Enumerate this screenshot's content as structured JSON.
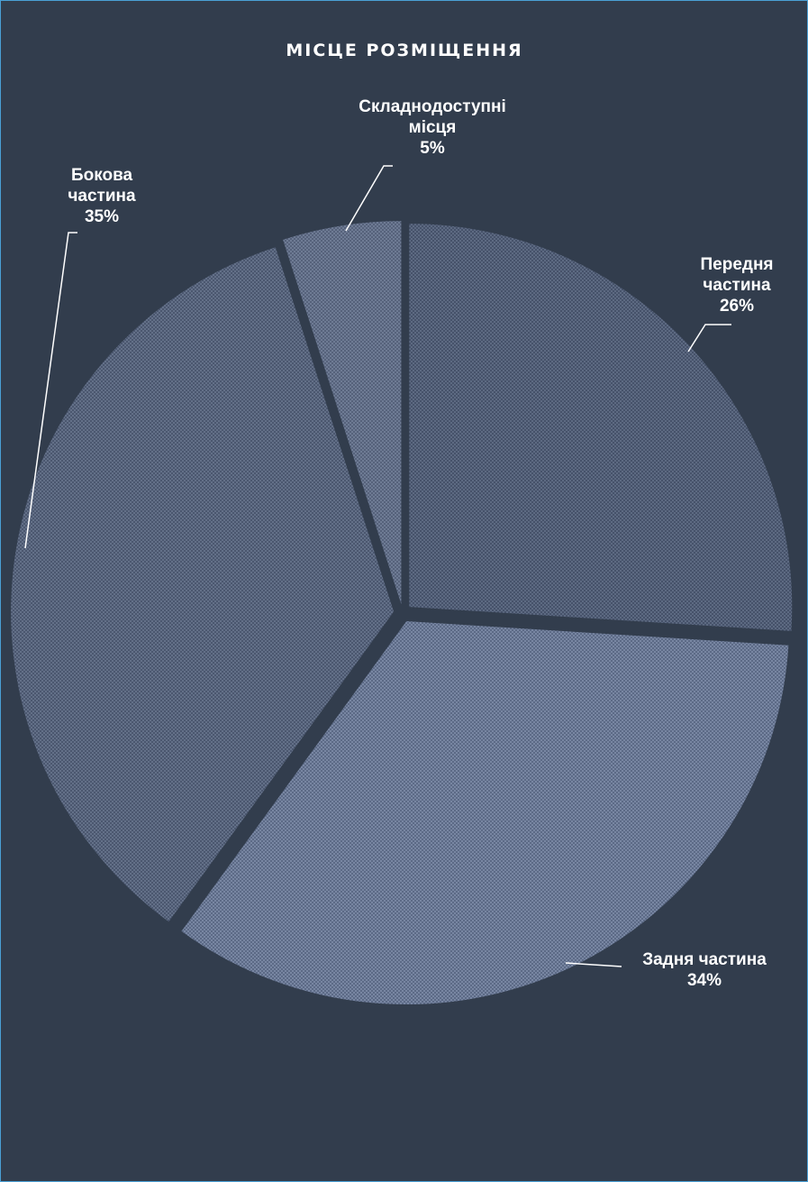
{
  "chart_data": {
    "type": "pie",
    "title": "МІСЦЕ РОЗМІЩЕННЯ",
    "slices": [
      {
        "label_lines": [
          "Передня",
          "частина"
        ],
        "value": 26,
        "value_label": "26%"
      },
      {
        "label_lines": [
          "Задня частина"
        ],
        "value": 34,
        "value_label": "34%"
      },
      {
        "label_lines": [
          "Бокова",
          "частина"
        ],
        "value": 35,
        "value_label": "35%"
      },
      {
        "label_lines": [
          "Складнодоступні",
          "місця"
        ],
        "value": 5,
        "value_label": "5%"
      }
    ],
    "colors": {
      "background": "#323d4d",
      "border": "#4aa0d6",
      "slice_fills": [
        "#46526a",
        "#5c6a86",
        "#4b576f",
        "#56627b"
      ],
      "slice_dots": [
        "#5d6a82",
        "#7886a2",
        "#637088",
        "#6e7b94"
      ]
    }
  }
}
